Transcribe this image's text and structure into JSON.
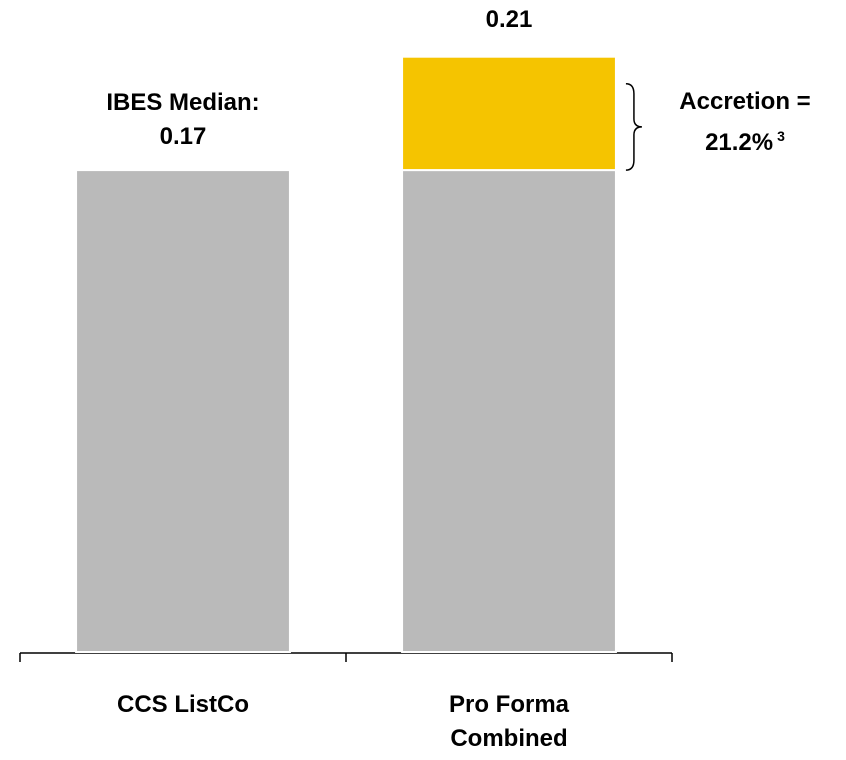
{
  "chart_data": {
    "type": "stacked-bar",
    "fragment": ")",
    "categories": [
      "CCS ListCo",
      "Pro Forma Combined"
    ],
    "series": [
      {
        "color": "#bababa",
        "values": [
          0.17,
          0.17
        ],
        "value_labels": [
          "0.17",
          null
        ]
      },
      {
        "color": "#f5c400",
        "values": [
          null,
          0.04
        ]
      }
    ],
    "median_label": "IBES Median:",
    "totals": [
      null,
      0.21
    ],
    "accretion_label": "Accretion =",
    "accretion_value": "21.2%",
    "footnote": "3",
    "ylim": [
      0,
      0.23
    ]
  }
}
